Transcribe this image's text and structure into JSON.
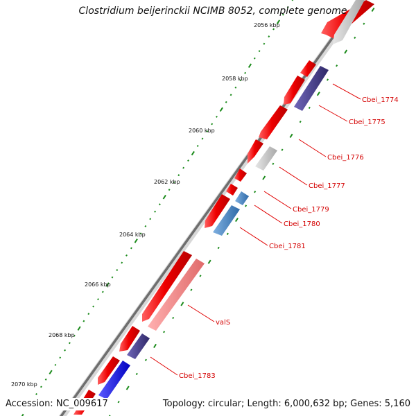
{
  "title": "Clostridium beijerinckii NCIMB 8052, complete genome",
  "footer": {
    "accession": "Accession: NC_009617",
    "summary": "Topology: circular; Length: 6,000,632 bp; Genes: 5,160"
  },
  "ticks": [
    {
      "label": "2056 kbp"
    },
    {
      "label": "2058 kbp"
    },
    {
      "label": "2060 kbp"
    },
    {
      "label": "2062 kbp"
    },
    {
      "label": "2064 kbp"
    },
    {
      "label": "2066 kbp"
    },
    {
      "label": "2068 kbp"
    },
    {
      "label": "2070 kbp"
    }
  ],
  "gene_labels": [
    {
      "name": "Cbei_1774"
    },
    {
      "name": "Cbei_1775"
    },
    {
      "name": "Cbei_1776"
    },
    {
      "name": "Cbei_1777"
    },
    {
      "name": "Cbei_1779"
    },
    {
      "name": "Cbei_1780"
    },
    {
      "name": "Cbei_1781"
    },
    {
      "name": "valS"
    },
    {
      "name": "Cbei_1783"
    }
  ],
  "colors": {
    "backbone": "#7a7a7a",
    "forward_gene": "#ee0000",
    "reverse_gene_grey": "#bdbdbd",
    "reverse_gene_purple": "#4a3f8f",
    "reverse_gene_steelblue": "#4a86c5",
    "reverse_gene_blue": "#1a1aee",
    "reverse_gene_pink": "#f08080",
    "tick": "#1a8a1a",
    "label": "#d40000"
  }
}
